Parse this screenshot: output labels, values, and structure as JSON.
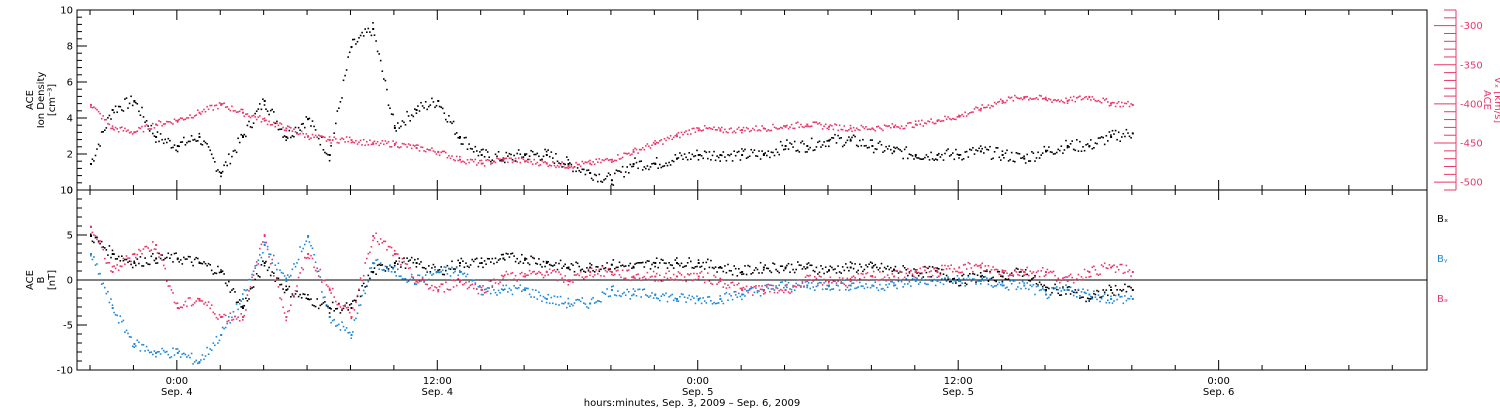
{
  "chart_data": [
    {
      "type": "scatter",
      "panel": "top",
      "ylabel_lines": [
        "ACE",
        "Ion Density",
        "[cm⁻³]"
      ],
      "ylim": [
        0,
        10
      ],
      "yticks": [
        0,
        2,
        4,
        6,
        8,
        10
      ],
      "y2label_lines": [
        "ACE",
        "Vₓ [km/s]"
      ],
      "y2lim": [
        -510,
        -280
      ],
      "y2ticks": [
        -500,
        -450,
        -400,
        -350,
        -300
      ],
      "colors": {
        "density": "#000000",
        "vx": "#e8386a"
      },
      "series": [
        {
          "axis": "left",
          "color": "#000000",
          "x": [
            -4,
            -3,
            -2,
            -1,
            0,
            1,
            2,
            3,
            4,
            5,
            6,
            7,
            8,
            9,
            10,
            11,
            12,
            13,
            14,
            15,
            16,
            17,
            18,
            19,
            20,
            21,
            22,
            23,
            24,
            25,
            26,
            27,
            28,
            29,
            30,
            31,
            32,
            33,
            34,
            35,
            36,
            37,
            38,
            39,
            40,
            41,
            42,
            43,
            44
          ],
          "y": [
            1.5,
            4.5,
            5,
            3,
            2.5,
            3,
            1,
            3,
            5,
            3,
            4,
            2,
            8,
            9,
            3.5,
            4.5,
            5,
            3,
            2,
            1.8,
            2,
            2,
            1.5,
            1,
            0.6,
            1.5,
            1.5,
            1.8,
            2,
            2,
            2,
            2,
            2.5,
            2.5,
            2.8,
            2.8,
            2.5,
            2.2,
            2,
            2,
            2,
            2.2,
            2,
            1.8,
            2.2,
            2.5,
            2.5,
            3,
            3.2
          ]
        },
        {
          "axis": "right",
          "color": "#e8386a",
          "x": [
            -4,
            -3,
            -2,
            -1,
            0,
            1,
            2,
            3,
            4,
            5,
            6,
            7,
            8,
            9,
            10,
            11,
            12,
            13,
            14,
            15,
            16,
            17,
            18,
            19,
            20,
            21,
            22,
            23,
            24,
            25,
            26,
            27,
            28,
            29,
            30,
            31,
            32,
            33,
            34,
            35,
            36,
            37,
            38,
            39,
            40,
            41,
            42,
            43,
            44
          ],
          "y": [
            -400,
            -430,
            -435,
            -425,
            -420,
            -410,
            -400,
            -410,
            -420,
            -430,
            -440,
            -445,
            -445,
            -450,
            -450,
            -455,
            -460,
            -470,
            -475,
            -470,
            -472,
            -475,
            -478,
            -475,
            -470,
            -460,
            -450,
            -440,
            -430,
            -433,
            -432,
            -430,
            -428,
            -425,
            -428,
            -430,
            -430,
            -428,
            -425,
            -420,
            -415,
            -405,
            -395,
            -390,
            -393,
            -395,
            -390,
            -398,
            -400
          ]
        }
      ]
    },
    {
      "type": "scatter",
      "panel": "bottom",
      "ylabel_lines": [
        "ACE",
        "B",
        "[nT]"
      ],
      "ylim": [
        -10,
        10
      ],
      "yticks": [
        -10,
        -5,
        0,
        5,
        10
      ],
      "legend": [
        {
          "name": "Bₓ",
          "color": "#000000"
        },
        {
          "name": "Bᵧ",
          "color": "#1e88d6"
        },
        {
          "name": "Bₔ",
          "color": "#e8386a"
        }
      ],
      "series": [
        {
          "name": "Bₓ",
          "color": "#000000",
          "x": [
            -4,
            -3,
            -2,
            -1,
            0,
            1,
            2,
            3,
            4,
            5,
            6,
            7,
            8,
            9,
            10,
            11,
            12,
            13,
            14,
            15,
            16,
            17,
            18,
            19,
            20,
            21,
            22,
            23,
            24,
            25,
            26,
            27,
            28,
            29,
            30,
            31,
            32,
            33,
            34,
            35,
            36,
            37,
            38,
            39,
            40,
            41,
            42,
            43,
            44
          ],
          "y": [
            5,
            3,
            2,
            2.5,
            2.5,
            2,
            1,
            -3,
            2,
            -1,
            -2,
            -3,
            -3,
            1,
            2,
            2,
            1,
            2,
            2,
            2.5,
            2.5,
            2,
            1.5,
            1.5,
            1.8,
            1.5,
            2,
            2,
            2,
            1.5,
            1,
            1.5,
            1.5,
            1.5,
            1.2,
            1.5,
            1.5,
            1.2,
            1,
            1,
            0,
            0.5,
            0.5,
            1,
            -1,
            -1,
            -2,
            -1,
            -1
          ]
        },
        {
          "name": "Bᵧ",
          "color": "#1e88d6",
          "x": [
            -4,
            -3,
            -2,
            -1,
            0,
            1,
            2,
            3,
            4,
            5,
            6,
            7,
            8,
            9,
            10,
            11,
            12,
            13,
            14,
            15,
            16,
            17,
            18,
            19,
            20,
            21,
            22,
            23,
            24,
            25,
            26,
            27,
            28,
            29,
            30,
            31,
            32,
            33,
            34,
            35,
            36,
            37,
            38,
            39,
            40,
            41,
            42,
            43,
            44
          ],
          "y": [
            3,
            -3,
            -7,
            -8,
            -8,
            -9,
            -6,
            -2,
            4,
            0,
            5,
            -4,
            -6,
            2,
            1,
            0,
            1,
            1,
            -1,
            -1,
            -1,
            -2,
            -2.5,
            -2.5,
            -1,
            -1.5,
            -1.5,
            -2,
            -2,
            -2,
            -1.5,
            -1,
            -0.5,
            -0.5,
            -0.5,
            -0.5,
            -0.5,
            -0.5,
            0,
            0,
            0,
            0,
            -0.5,
            -0.5,
            -1.5,
            -1,
            -1.5,
            -2,
            -2
          ]
        },
        {
          "name": "Bₔ",
          "color": "#e8386a",
          "x": [
            -4,
            -3,
            -2,
            -1,
            0,
            1,
            2,
            3,
            4,
            5,
            6,
            7,
            8,
            9,
            10,
            11,
            12,
            13,
            14,
            15,
            16,
            17,
            18,
            19,
            20,
            21,
            22,
            23,
            24,
            25,
            26,
            27,
            28,
            29,
            30,
            31,
            32,
            33,
            34,
            35,
            36,
            37,
            38,
            39,
            40,
            41,
            42,
            43,
            44
          ],
          "y": [
            6,
            1,
            3,
            4,
            -3,
            -2,
            -4,
            -4,
            5,
            -4,
            3,
            -1,
            -4,
            5,
            3,
            0,
            -1,
            0,
            -1,
            0.5,
            0.5,
            1,
            0,
            1,
            1,
            0.5,
            0.5,
            0.5,
            0.5,
            0,
            -1,
            -1,
            -1,
            0,
            0,
            0,
            0.5,
            0.5,
            1,
            1,
            1.5,
            1.5,
            1,
            1,
            1,
            0,
            1,
            1.5,
            1
          ]
        }
      ]
    }
  ],
  "xaxis": {
    "type": "time",
    "unit": "hours since Sep. 4, 2009 00:00",
    "xlim": [
      -4.6,
      57.6
    ],
    "major_ticks": [
      {
        "x": 0,
        "time": "0:00",
        "date": "Sep. 4"
      },
      {
        "x": 12,
        "time": "12:00",
        "date": "Sep. 4"
      },
      {
        "x": 24,
        "time": "0:00",
        "date": "Sep. 5"
      },
      {
        "x": 36,
        "time": "12:00",
        "date": "Sep. 5"
      },
      {
        "x": 48,
        "time": "0:00",
        "date": "Sep. 6"
      }
    ],
    "title": "hours:minutes, Sep.  3, 2009 – Sep.  6, 2009"
  }
}
